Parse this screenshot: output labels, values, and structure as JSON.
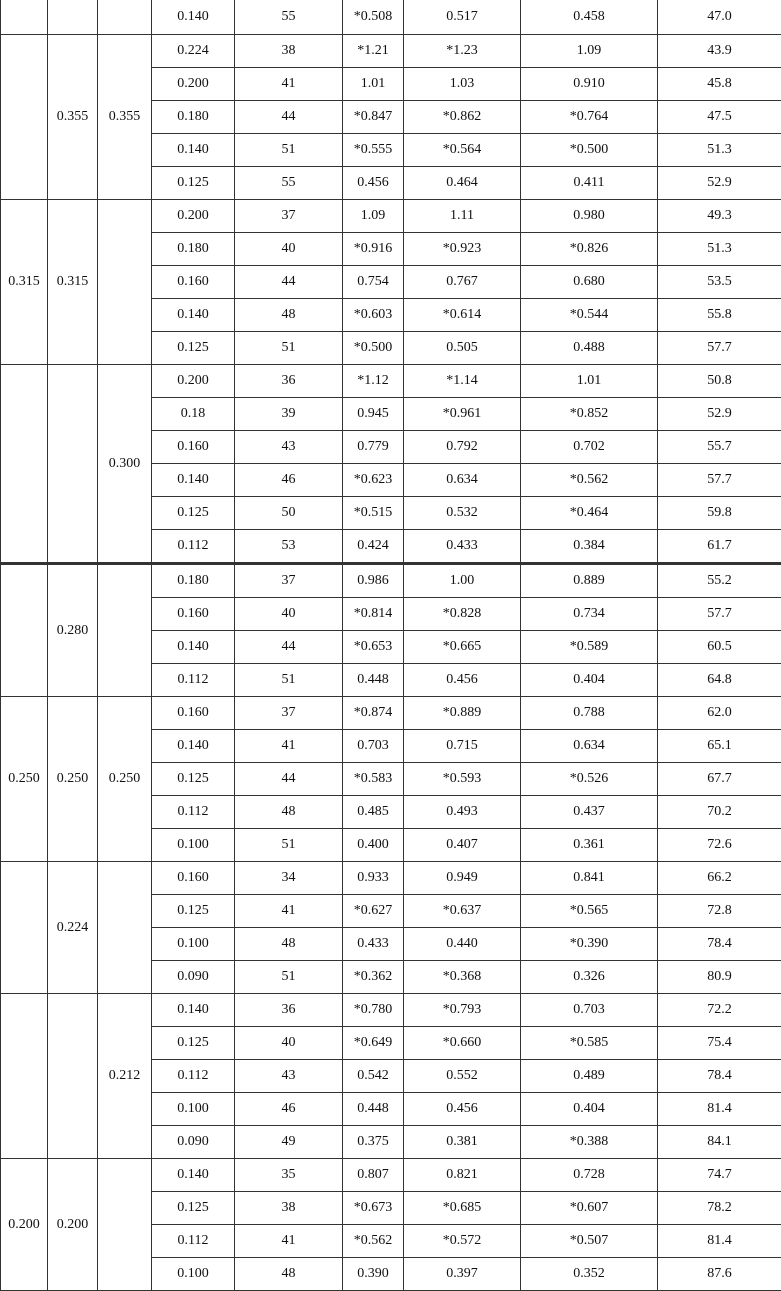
{
  "groups": [
    {
      "c1": "",
      "c2": "",
      "c3": "",
      "rows": [
        [
          "0.140",
          "55",
          "*0.508",
          "0.517",
          "0.458",
          "47.0"
        ]
      ]
    },
    {
      "c1": "",
      "c2": "0.355",
      "c3": "0.355",
      "rows": [
        [
          "0.224",
          "38",
          "*1.21",
          "*1.23",
          "1.09",
          "43.9"
        ],
        [
          "0.200",
          "41",
          "1.01",
          "1.03",
          "0.910",
          "45.8"
        ],
        [
          "0.180",
          "44",
          "*0.847",
          "*0.862",
          "*0.764",
          "47.5"
        ],
        [
          "0.140",
          "51",
          "*0.555",
          "*0.564",
          "*0.500",
          "51.3"
        ],
        [
          "0.125",
          "55",
          "0.456",
          "0.464",
          "0.411",
          "52.9"
        ]
      ]
    },
    {
      "c1": "0.315",
      "c2": "0.315",
      "c3": "",
      "rows": [
        [
          "0.200",
          "37",
          "1.09",
          "1.11",
          "0.980",
          "49.3"
        ],
        [
          "0.180",
          "40",
          "*0.916",
          "*0.923",
          "*0.826",
          "51.3"
        ],
        [
          "0.160",
          "44",
          "0.754",
          "0.767",
          "0.680",
          "53.5"
        ],
        [
          "0.140",
          "48",
          "*0.603",
          "*0.614",
          "*0.544",
          "55.8"
        ],
        [
          "0.125",
          "51",
          "*0.500",
          "0.505",
          "0.488",
          "57.7"
        ]
      ]
    },
    {
      "c1": "",
      "c2": "",
      "c3": "0.300",
      "rows": [
        [
          "0.200",
          "36",
          "*1.12",
          "*1.14",
          "1.01",
          "50.8"
        ],
        [
          "0.18",
          "39",
          "0.945",
          "*0.961",
          "*0.852",
          "52.9"
        ],
        [
          "0.160",
          "43",
          "0.779",
          "0.792",
          "0.702",
          "55.7"
        ],
        [
          "0.140",
          "46",
          "*0.623",
          "0.634",
          "*0.562",
          "57.7"
        ],
        [
          "0.125",
          "50",
          "*0.515",
          "0.532",
          "*0.464",
          "59.8"
        ],
        [
          "0.112",
          "53",
          "0.424",
          "0.433",
          "0.384",
          "61.7"
        ]
      ]
    },
    {
      "c1": "",
      "c2": "0.280",
      "c3": "",
      "thick": true,
      "rows": [
        [
          "0.180",
          "37",
          "0.986",
          "1.00",
          "0.889",
          "55.2"
        ],
        [
          "0.160",
          "40",
          "*0.814",
          "*0.828",
          "0.734",
          "57.7"
        ],
        [
          "0.140",
          "44",
          "*0.653",
          "*0.665",
          "*0.589",
          "60.5"
        ],
        [
          "0.112",
          "51",
          "0.448",
          "0.456",
          "0.404",
          "64.8"
        ]
      ]
    },
    {
      "c1": "0.250",
      "c2": "0.250",
      "c3": "0.250",
      "rows": [
        [
          "0.160",
          "37",
          "*0.874",
          "*0.889",
          "0.788",
          "62.0"
        ],
        [
          "0.140",
          "41",
          "0.703",
          "0.715",
          "0.634",
          "65.1"
        ],
        [
          "0.125",
          "44",
          "*0.583",
          "*0.593",
          "*0.526",
          "67.7"
        ],
        [
          "0.112",
          "48",
          "0.485",
          "0.493",
          "0.437",
          "70.2"
        ],
        [
          "0.100",
          "51",
          "0.400",
          "0.407",
          "0.361",
          "72.6"
        ]
      ]
    },
    {
      "c1": "",
      "c2": "0.224",
      "c3": "",
      "rows": [
        [
          "0.160",
          "34",
          "0.933",
          "0.949",
          "0.841",
          "66.2"
        ],
        [
          "0.125",
          "41",
          "*0.627",
          "*0.637",
          "*0.565",
          "72.8"
        ],
        [
          "0.100",
          "48",
          "0.433",
          "0.440",
          "*0.390",
          "78.4"
        ],
        [
          "0.090",
          "51",
          "*0.362",
          "*0.368",
          "0.326",
          "80.9"
        ]
      ]
    },
    {
      "c1": "",
      "c2": "",
      "c3": "0.212",
      "rows": [
        [
          "0.140",
          "36",
          "*0.780",
          "*0.793",
          "0.703",
          "72.2"
        ],
        [
          "0.125",
          "40",
          "*0.649",
          "*0.660",
          "*0.585",
          "75.4"
        ],
        [
          "0.112",
          "43",
          "0.542",
          "0.552",
          "0.489",
          "78.4"
        ],
        [
          "0.100",
          "46",
          "0.448",
          "0.456",
          "0.404",
          "81.4"
        ],
        [
          "0.090",
          "49",
          "0.375",
          "0.381",
          "*0.388",
          "84.1"
        ]
      ]
    },
    {
      "c1": "0.200",
      "c2": "0.200",
      "c3": "",
      "rows": [
        [
          "0.140",
          "35",
          "0.807",
          "0.821",
          "0.728",
          "74.7"
        ],
        [
          "0.125",
          "38",
          "*0.673",
          "*0.685",
          "*0.607",
          "78.2"
        ],
        [
          "0.112",
          "41",
          "*0.562",
          "*0.572",
          "*0.507",
          "81.4"
        ],
        [
          "0.100",
          "48",
          "0.390",
          "0.397",
          "0.352",
          "87.6"
        ]
      ]
    }
  ]
}
